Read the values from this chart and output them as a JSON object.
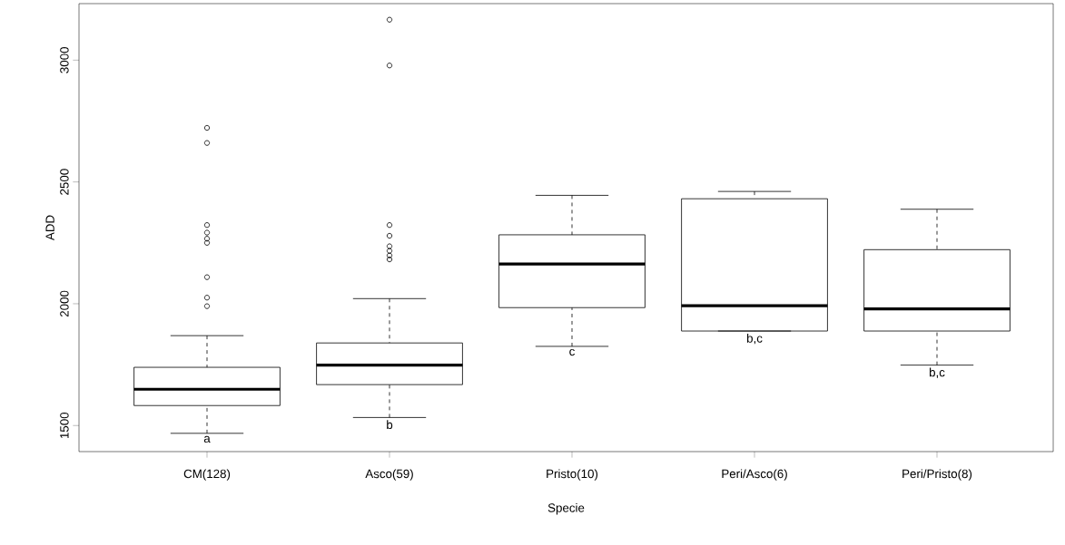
{
  "chart_data": {
    "type": "box",
    "xlabel": "Specie",
    "ylabel": "ADD",
    "categories": [
      "CM(128)",
      "Asco(59)",
      "Pristo(10)",
      "Peri/Asco(6)",
      "Peri/Pristo(8)"
    ],
    "boxes": [
      {
        "low": 1468,
        "q1": 1582,
        "median": 1649,
        "q3": 1739,
        "high": 1869,
        "outliers": [
          2722,
          2660,
          2323,
          2292,
          2267,
          2250,
          2109,
          2025,
          1990
        ]
      },
      {
        "low": 1533,
        "q1": 1668,
        "median": 1748,
        "q3": 1839,
        "high": 2021,
        "outliers": [
          3166,
          2978,
          2323,
          2279,
          2236,
          2217,
          2198,
          2182
        ]
      },
      {
        "low": 1825,
        "q1": 1984,
        "median": 2163,
        "q3": 2283,
        "high": 2445
      },
      {
        "low": 1888,
        "q1": 1888,
        "median": 1992,
        "q3": 2431,
        "high": 2461
      },
      {
        "low": 1748,
        "q1": 1888,
        "median": 1979,
        "q3": 2222,
        "high": 2388
      }
    ],
    "ylim": [
      1393,
      3232
    ],
    "yticks": [
      1500,
      2000,
      2500,
      3000
    ],
    "color": "#000000",
    "marker": "circle",
    "annotations": [
      "a",
      "b",
      "c",
      "b,c",
      "b,c"
    ]
  }
}
